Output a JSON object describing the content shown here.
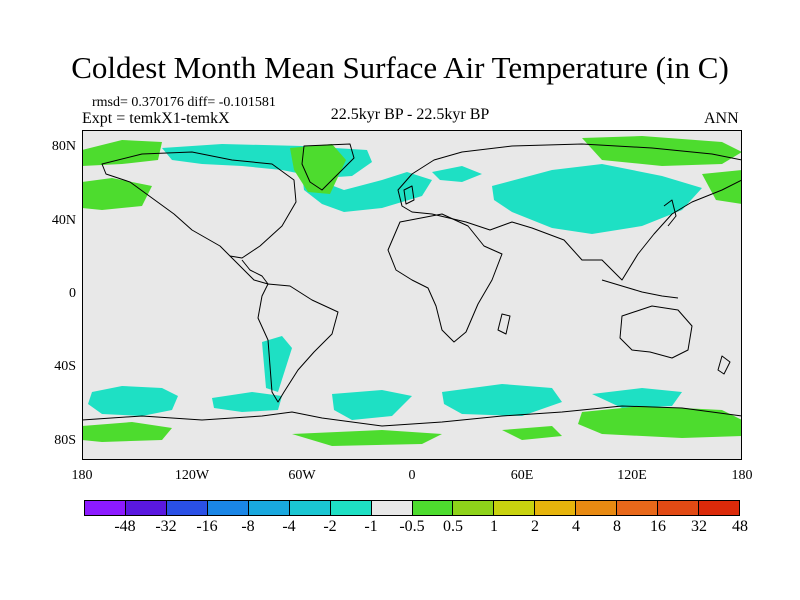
{
  "title": "Coldest Month Mean Surface Air Temperature (in C)",
  "stats": "rmsd= 0.370176 diff= -0.101581",
  "experiment": "Expt = temkX1-temkX",
  "period": "22.5kyr BP - 22.5kyr BP",
  "season": "ANN",
  "y_axis_labels": [
    {
      "text": "80N",
      "lat": 80
    },
    {
      "text": "40N",
      "lat": 40
    },
    {
      "text": "0",
      "lat": 0
    },
    {
      "text": "40S",
      "lat": -40
    },
    {
      "text": "80S",
      "lat": -80
    }
  ],
  "x_axis_labels": [
    {
      "text": "180",
      "lon": -180
    },
    {
      "text": "120W",
      "lon": -120
    },
    {
      "text": "60W",
      "lon": -60
    },
    {
      "text": "0",
      "lon": 0
    },
    {
      "text": "60E",
      "lon": 60
    },
    {
      "text": "120E",
      "lon": 120
    },
    {
      "text": "180",
      "lon": 180
    }
  ],
  "colorbar": {
    "colors": [
      "#8c1aff",
      "#5a18e0",
      "#2a50e6",
      "#1a86e6",
      "#19a8de",
      "#1ac6d2",
      "#1ee0c4",
      "#e8e8e8",
      "#4ddc2e",
      "#8ed21a",
      "#c8d20f",
      "#e6b40c",
      "#e88a12",
      "#e8681a",
      "#e24a14",
      "#dc2a0a"
    ],
    "labels": [
      "-48",
      "-32",
      "-16",
      "-8",
      "-4",
      "-2",
      "-1",
      "-0.5",
      "0.5",
      "1",
      "2",
      "4",
      "8",
      "16",
      "32",
      "48"
    ]
  },
  "colors": {
    "background": "#e8e8e8",
    "cool_anomaly": "#1ee0c4",
    "warm_anomaly": "#4ddc2e"
  }
}
